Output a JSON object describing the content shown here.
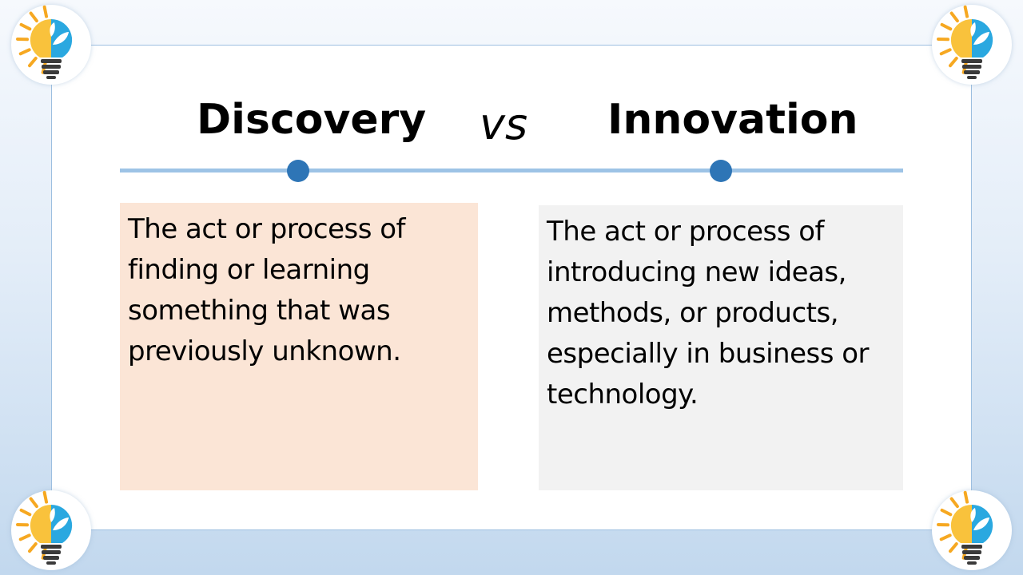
{
  "slide": {
    "left_title": "Discovery",
    "vs": "vs",
    "right_title": "Innovation",
    "left_definition": "The act or process of finding or learning something that was previously unknown.",
    "right_definition": "The act or process of introducing new ideas, methods, or products, especially in business or technology."
  },
  "colors": {
    "timeline": "#9dc3e6",
    "dots": "#2e75b6",
    "left_box": "#fbe5d6",
    "right_box": "#f2f2f2",
    "bulb_glass": "#2aa8e0",
    "bulb_rays": "#f6a821"
  },
  "icons": {
    "corner_icon": "lightbulb-icon"
  }
}
